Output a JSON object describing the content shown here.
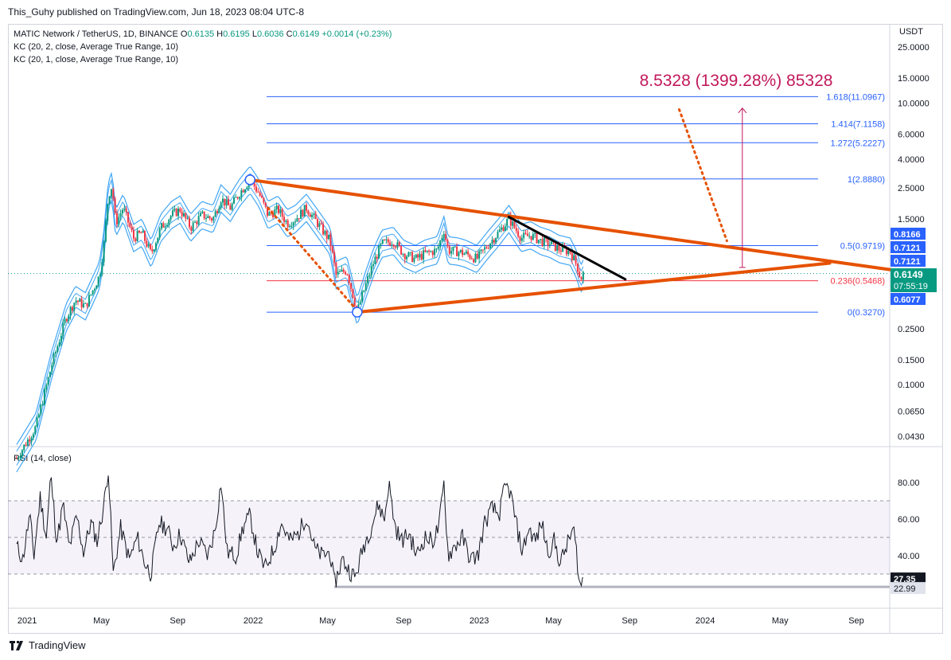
{
  "header": {
    "publisher": "This_Guhy published on TradingView.com, Jun 18, 2023 08:04 UTC-8"
  },
  "legend": {
    "symbol": "MATIC Network / TetherUS, 1D, BINANCE",
    "o_label": "O",
    "o": "0.6135",
    "h_label": "H",
    "h": "0.6195",
    "l_label": "L",
    "l": "0.6036",
    "c_label": "C",
    "c": "0.6149",
    "change": "+0.0014 (+0.23%)",
    "kc1": "KC (20, 2, close, Average True Range, 10)",
    "kc2": "KC (20, 1, close, Average True Range, 10)"
  },
  "rsi_legend": "RSI (14, close)",
  "target_label": "8.5328 (1399.28%) 85328",
  "footer": {
    "brand": "TradingView"
  },
  "colors": {
    "up": "#089981",
    "down": "#f23645",
    "band": "#2196f3",
    "trend": "#e65100",
    "fib": "#2962ff",
    "fib_red": "#f23645",
    "rsi": "#131722",
    "target": "#c2185b"
  },
  "chart_data": [
    {
      "type": "candlestick",
      "title": "MATIC Network / TetherUS, 1D, BINANCE",
      "y_scale": "log",
      "y_axis_unit": "USDT",
      "y_ticks": [
        "25.0000",
        "15.0000",
        "10.0000",
        "6.0000",
        "4.0000",
        "2.5000",
        "1.5000",
        "0.2500",
        "0.1500",
        "0.1000",
        "0.0650",
        "0.0430"
      ],
      "x_ticks": [
        "2021",
        "May",
        "Sep",
        "2022",
        "May",
        "Sep",
        "2023",
        "May",
        "Sep",
        "2024",
        "May",
        "Sep"
      ],
      "price_labels": [
        "0.8166",
        "0.7121",
        "0.7121",
        "0.6149",
        "07:55:19",
        "0.6077"
      ],
      "last": {
        "open": 0.6135,
        "high": 0.6195,
        "low": 0.6036,
        "close": 0.6149
      },
      "fib_levels": [
        {
          "ratio": "0",
          "price": 0.327,
          "label": "0(0.3270)"
        },
        {
          "ratio": "0.236",
          "price": 0.5468,
          "label": "0.236(0.5468)"
        },
        {
          "ratio": "0.5",
          "price": 0.9719,
          "label": "0.5(0.9719)"
        },
        {
          "ratio": "1",
          "price": 2.888,
          "label": "1(2.8880)"
        },
        {
          "ratio": "1.272",
          "price": 5.2227,
          "label": "1.272(5.2227)"
        },
        {
          "ratio": "1.414",
          "price": 7.1158,
          "label": "1.414(7.1158)"
        },
        {
          "ratio": "1.618",
          "price": 11.0967,
          "label": "1.618(11.0967)"
        }
      ],
      "price_path": [
        [
          "2020-12-15",
          0.03
        ],
        [
          "2021-01-15",
          0.05
        ],
        [
          "2021-02-10",
          0.14
        ],
        [
          "2021-03-05",
          0.3
        ],
        [
          "2021-03-20",
          0.4
        ],
        [
          "2021-04-05",
          0.36
        ],
        [
          "2021-04-20",
          0.5
        ],
        [
          "2021-04-28",
          0.6
        ],
        [
          "2021-05-05",
          1.0
        ],
        [
          "2021-05-12",
          2.2
        ],
        [
          "2021-05-18",
          2.6
        ],
        [
          "2021-05-24",
          1.4
        ],
        [
          "2021-06-05",
          1.8
        ],
        [
          "2021-06-22",
          1.1
        ],
        [
          "2021-07-05",
          1.2
        ],
        [
          "2021-07-20",
          0.85
        ],
        [
          "2021-08-05",
          1.3
        ],
        [
          "2021-08-22",
          1.6
        ],
        [
          "2021-09-05",
          1.75
        ],
        [
          "2021-09-22",
          1.3
        ],
        [
          "2021-10-10",
          1.6
        ],
        [
          "2021-10-28",
          1.5
        ],
        [
          "2021-11-10",
          2.1
        ],
        [
          "2021-11-25",
          1.8
        ],
        [
          "2021-12-10",
          2.3
        ],
        [
          "2021-12-27",
          2.85
        ],
        [
          "2022-01-10",
          2.3
        ],
        [
          "2022-01-25",
          1.6
        ],
        [
          "2022-02-10",
          1.75
        ],
        [
          "2022-02-25",
          1.4
        ],
        [
          "2022-03-10",
          1.5
        ],
        [
          "2022-03-28",
          1.8
        ],
        [
          "2022-04-15",
          1.4
        ],
        [
          "2022-05-05",
          1.05
        ],
        [
          "2022-05-15",
          0.6
        ],
        [
          "2022-06-01",
          0.65
        ],
        [
          "2022-06-18",
          0.33
        ],
        [
          "2022-07-01",
          0.5
        ],
        [
          "2022-07-15",
          0.75
        ],
        [
          "2022-07-28",
          1.0
        ],
        [
          "2022-08-15",
          1.05
        ],
        [
          "2022-09-01",
          0.85
        ],
        [
          "2022-09-20",
          0.78
        ],
        [
          "2022-10-05",
          0.85
        ],
        [
          "2022-10-25",
          0.9
        ],
        [
          "2022-11-05",
          1.25
        ],
        [
          "2022-11-12",
          0.9
        ],
        [
          "2022-11-28",
          0.88
        ],
        [
          "2022-12-10",
          0.85
        ],
        [
          "2022-12-28",
          0.78
        ],
        [
          "2023-01-15",
          0.98
        ],
        [
          "2023-02-01",
          1.2
        ],
        [
          "2023-02-18",
          1.5
        ],
        [
          "2023-03-10",
          1.1
        ],
        [
          "2023-03-25",
          1.15
        ],
        [
          "2023-04-10",
          1.05
        ],
        [
          "2023-04-25",
          1.0
        ],
        [
          "2023-05-10",
          0.92
        ],
        [
          "2023-05-28",
          0.88
        ],
        [
          "2023-06-08",
          0.7
        ],
        [
          "2023-06-14",
          0.56
        ],
        [
          "2023-06-18",
          0.6149
        ]
      ],
      "trendlines": [
        {
          "name": "descending resistance",
          "from": [
            "2021-12-27",
            2.85
          ],
          "to": [
            "2024-11-01",
            0.65
          ],
          "style": "solid"
        },
        {
          "name": "ascending support",
          "from": [
            "2022-06-18",
            0.327
          ],
          "to": [
            "2024-07-20",
            0.73
          ],
          "style": "solid"
        },
        {
          "name": "local downtrend",
          "from": [
            "2023-02-18",
            1.55
          ],
          "to": [
            "2023-08-25",
            0.56
          ],
          "style": "solid"
        },
        {
          "name": "drop projection",
          "from": [
            "2022-01-25",
            1.8
          ],
          "to": [
            "2022-06-12",
            0.36
          ],
          "style": "dotted"
        },
        {
          "name": "breakout projection",
          "from": [
            "2023-11-20",
            9.0
          ],
          "to": [
            "2024-02-05",
            1.05
          ],
          "style": "dotted"
        }
      ],
      "target_projection": {
        "date": "2024-03-01",
        "from": 0.68,
        "to": 9.2
      }
    },
    {
      "type": "line",
      "title": "RSI (14, close)",
      "y_ticks": [
        "80.00",
        "60.00",
        "40.00"
      ],
      "upper_band": 70,
      "middle_band": 50,
      "lower_band": 30,
      "labels": [
        "27.35",
        "22.99"
      ],
      "current": 27.35,
      "support_level": 22.99,
      "values": [
        [
          "2020-12-15",
          45
        ],
        [
          "2020-12-25",
          38
        ],
        [
          "2021-01-05",
          62
        ],
        [
          "2021-01-12",
          40
        ],
        [
          "2021-01-22",
          72
        ],
        [
          "2021-02-01",
          50
        ],
        [
          "2021-02-08",
          84
        ],
        [
          "2021-02-18",
          48
        ],
        [
          "2021-02-28",
          68
        ],
        [
          "2021-03-10",
          44
        ],
        [
          "2021-03-22",
          62
        ],
        [
          "2021-04-02",
          42
        ],
        [
          "2021-04-14",
          58
        ],
        [
          "2021-04-24",
          48
        ],
        [
          "2021-05-05",
          68
        ],
        [
          "2021-05-12",
          88
        ],
        [
          "2021-05-20",
          30
        ],
        [
          "2021-06-01",
          55
        ],
        [
          "2021-06-15",
          38
        ],
        [
          "2021-06-28",
          50
        ],
        [
          "2021-07-10",
          36
        ],
        [
          "2021-07-20",
          30
        ],
        [
          "2021-08-02",
          58
        ],
        [
          "2021-08-15",
          55
        ],
        [
          "2021-08-25",
          45
        ],
        [
          "2021-09-05",
          52
        ],
        [
          "2021-09-20",
          36
        ],
        [
          "2021-10-05",
          48
        ],
        [
          "2021-10-20",
          40
        ],
        [
          "2021-11-01",
          55
        ],
        [
          "2021-11-10",
          80
        ],
        [
          "2021-11-20",
          42
        ],
        [
          "2021-12-05",
          40
        ],
        [
          "2021-12-15",
          55
        ],
        [
          "2021-12-27",
          62
        ],
        [
          "2022-01-08",
          42
        ],
        [
          "2022-01-20",
          33
        ],
        [
          "2022-02-05",
          45
        ],
        [
          "2022-02-15",
          58
        ],
        [
          "2022-03-01",
          48
        ],
        [
          "2022-03-15",
          52
        ],
        [
          "2022-03-28",
          62
        ],
        [
          "2022-04-10",
          44
        ],
        [
          "2022-04-22",
          40
        ],
        [
          "2022-05-05",
          42
        ],
        [
          "2022-05-12",
          24
        ],
        [
          "2022-05-25",
          38
        ],
        [
          "2022-06-05",
          32
        ],
        [
          "2022-06-15",
          28
        ],
        [
          "2022-06-28",
          45
        ],
        [
          "2022-07-10",
          55
        ],
        [
          "2022-07-22",
          68
        ],
        [
          "2022-08-01",
          60
        ],
        [
          "2022-08-08",
          80
        ],
        [
          "2022-08-18",
          56
        ],
        [
          "2022-08-28",
          48
        ],
        [
          "2022-09-10",
          52
        ],
        [
          "2022-09-22",
          40
        ],
        [
          "2022-10-05",
          50
        ],
        [
          "2022-10-18",
          48
        ],
        [
          "2022-10-28",
          56
        ],
        [
          "2022-11-05",
          79
        ],
        [
          "2022-11-12",
          40
        ],
        [
          "2022-11-22",
          45
        ],
        [
          "2022-12-05",
          50
        ],
        [
          "2022-12-18",
          38
        ],
        [
          "2022-12-30",
          40
        ],
        [
          "2023-01-10",
          58
        ],
        [
          "2023-01-22",
          66
        ],
        [
          "2023-02-02",
          62
        ],
        [
          "2023-02-12",
          78
        ],
        [
          "2023-02-20",
          75
        ],
        [
          "2023-03-05",
          52
        ],
        [
          "2023-03-12",
          42
        ],
        [
          "2023-03-22",
          55
        ],
        [
          "2023-04-02",
          48
        ],
        [
          "2023-04-12",
          58
        ],
        [
          "2023-04-22",
          42
        ],
        [
          "2023-05-02",
          48
        ],
        [
          "2023-05-12",
          36
        ],
        [
          "2023-05-22",
          45
        ],
        [
          "2023-06-02",
          55
        ],
        [
          "2023-06-08",
          40
        ],
        [
          "2023-06-12",
          23
        ],
        [
          "2023-06-18",
          27.35
        ]
      ]
    }
  ]
}
